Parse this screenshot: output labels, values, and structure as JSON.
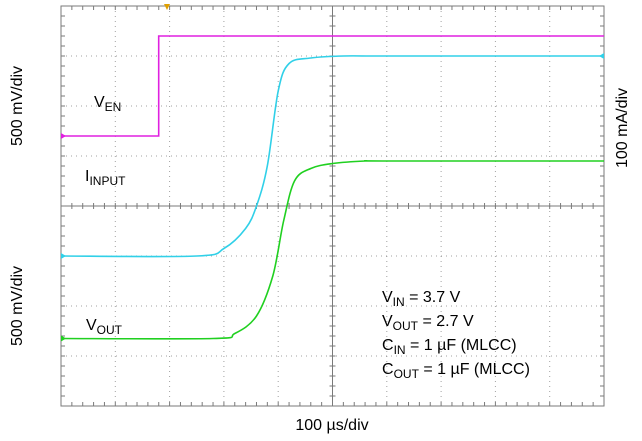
{
  "chart_data": {
    "type": "line",
    "x_unit": "div",
    "y_unit": "div",
    "x_range": [
      0,
      10
    ],
    "y_range": [
      -4,
      4
    ],
    "grid": true,
    "series": [
      {
        "name": "V_EN",
        "color": "#e020e0",
        "x": [
          0,
          1.8,
          1.8,
          10
        ],
        "y": [
          1.4,
          1.4,
          3.4,
          3.4
        ]
      },
      {
        "name": "I_INPUT",
        "color": "#30d0e8",
        "x": [
          0,
          2.5,
          3.0,
          3.4,
          3.6,
          3.8,
          4.0,
          4.2,
          4.6,
          5.2,
          6.0,
          10
        ],
        "y": [
          -1.0,
          -1.0,
          -0.85,
          -0.45,
          0.0,
          0.8,
          2.3,
          2.85,
          2.96,
          3.0,
          3.0,
          3.0
        ]
      },
      {
        "name": "V_OUT",
        "color": "#20d020",
        "x": [
          0,
          2.8,
          3.2,
          3.6,
          3.9,
          4.1,
          4.3,
          4.6,
          5.0,
          5.6,
          6.0,
          10
        ],
        "y": [
          -2.65,
          -2.65,
          -2.55,
          -2.2,
          -1.4,
          -0.3,
          0.5,
          0.75,
          0.85,
          0.9,
          0.9,
          0.9
        ]
      }
    ]
  },
  "labels": {
    "ven": {
      "main": "V",
      "sub": "EN"
    },
    "iinput": {
      "main": "I",
      "sub": "INPUT"
    },
    "vout": {
      "main": "V",
      "sub": "OUT"
    },
    "ylabel_top_left": "500 mV/div",
    "ylabel_bottom_left": "500 mV/div",
    "ylabel_right": "100 mA/div",
    "xlabel": "100 µs/div"
  },
  "conditions": [
    {
      "main": "V",
      "sub": "IN",
      "rest": " = 3.7 V"
    },
    {
      "main": "V",
      "sub": "OUT",
      "rest": " = 2.7 V"
    },
    {
      "main": "C",
      "sub": "IN",
      "rest": " = 1 µF (MLCC)"
    },
    {
      "main": "C",
      "sub": "OUT",
      "rest": " = 1 µF (MLCC)"
    }
  ],
  "colors": {
    "grid": "#7a7a7a",
    "frame": "#7a7a7a",
    "trigger_marker": "#e0a000"
  }
}
